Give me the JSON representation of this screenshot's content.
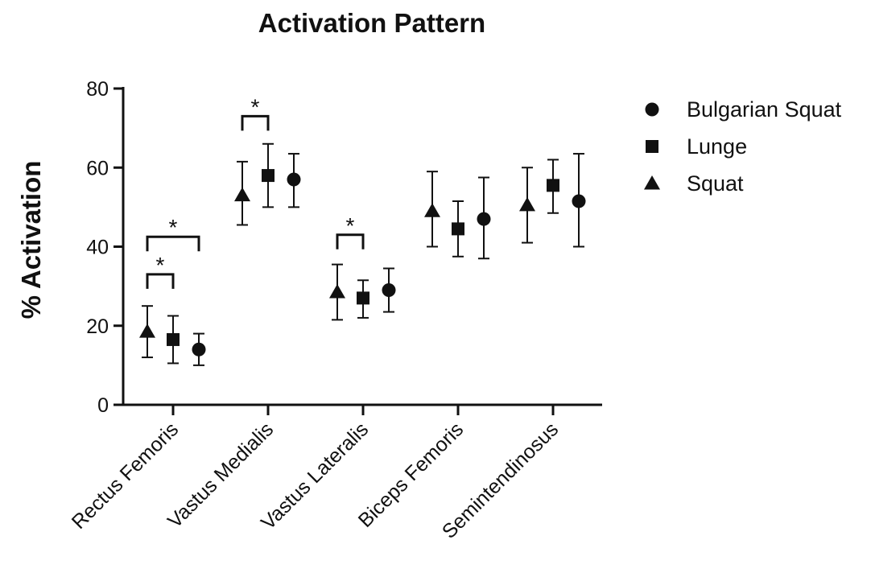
{
  "chart_data": {
    "type": "scatter",
    "title": "Activation Pattern",
    "xlabel": "",
    "ylabel": "% Activation",
    "ylim": [
      0,
      80
    ],
    "yticks": [
      0,
      20,
      40,
      60,
      80
    ],
    "grid": false,
    "legend_position": "top-right",
    "categories": [
      "Rectus Femoris",
      "Vastus Medialis",
      "Vastus Lateralis",
      "Biceps Femoris",
      "Semintendinosus"
    ],
    "series_order_on_axis": [
      "Squat",
      "Lunge",
      "Bulgarian Squat"
    ],
    "legend_order": [
      "Bulgarian Squat",
      "Lunge",
      "Squat"
    ],
    "series": [
      {
        "name": "Squat",
        "marker": "triangle",
        "values": [
          18.5,
          53,
          28.5,
          49,
          50.5
        ],
        "error_low": [
          12,
          45.5,
          21.5,
          40,
          41
        ],
        "error_high": [
          25,
          61.5,
          35.5,
          59,
          60
        ]
      },
      {
        "name": "Lunge",
        "marker": "square",
        "values": [
          16.5,
          58,
          27,
          44.5,
          55.5
        ],
        "error_low": [
          10.5,
          50,
          22,
          37.5,
          48.5
        ],
        "error_high": [
          22.5,
          66,
          31.5,
          51.5,
          62
        ]
      },
      {
        "name": "Bulgarian Squat",
        "marker": "circle",
        "values": [
          14,
          57,
          29,
          47,
          51.5
        ],
        "error_low": [
          10,
          50,
          23.5,
          37,
          40
        ],
        "error_high": [
          18,
          63.5,
          34.5,
          57.5,
          63.5
        ]
      }
    ],
    "significance": [
      {
        "label": "*",
        "category": 0,
        "from": "Squat",
        "to": "Lunge",
        "y": 33
      },
      {
        "label": "*",
        "category": 0,
        "from": "Squat",
        "to": "Bulgarian Squat",
        "y": 42.5
      },
      {
        "label": "*",
        "category": 1,
        "from": "Squat",
        "to": "Lunge",
        "y": 73
      },
      {
        "label": "*",
        "category": 2,
        "from": "Squat",
        "to": "Lunge",
        "y": 43
      }
    ]
  }
}
